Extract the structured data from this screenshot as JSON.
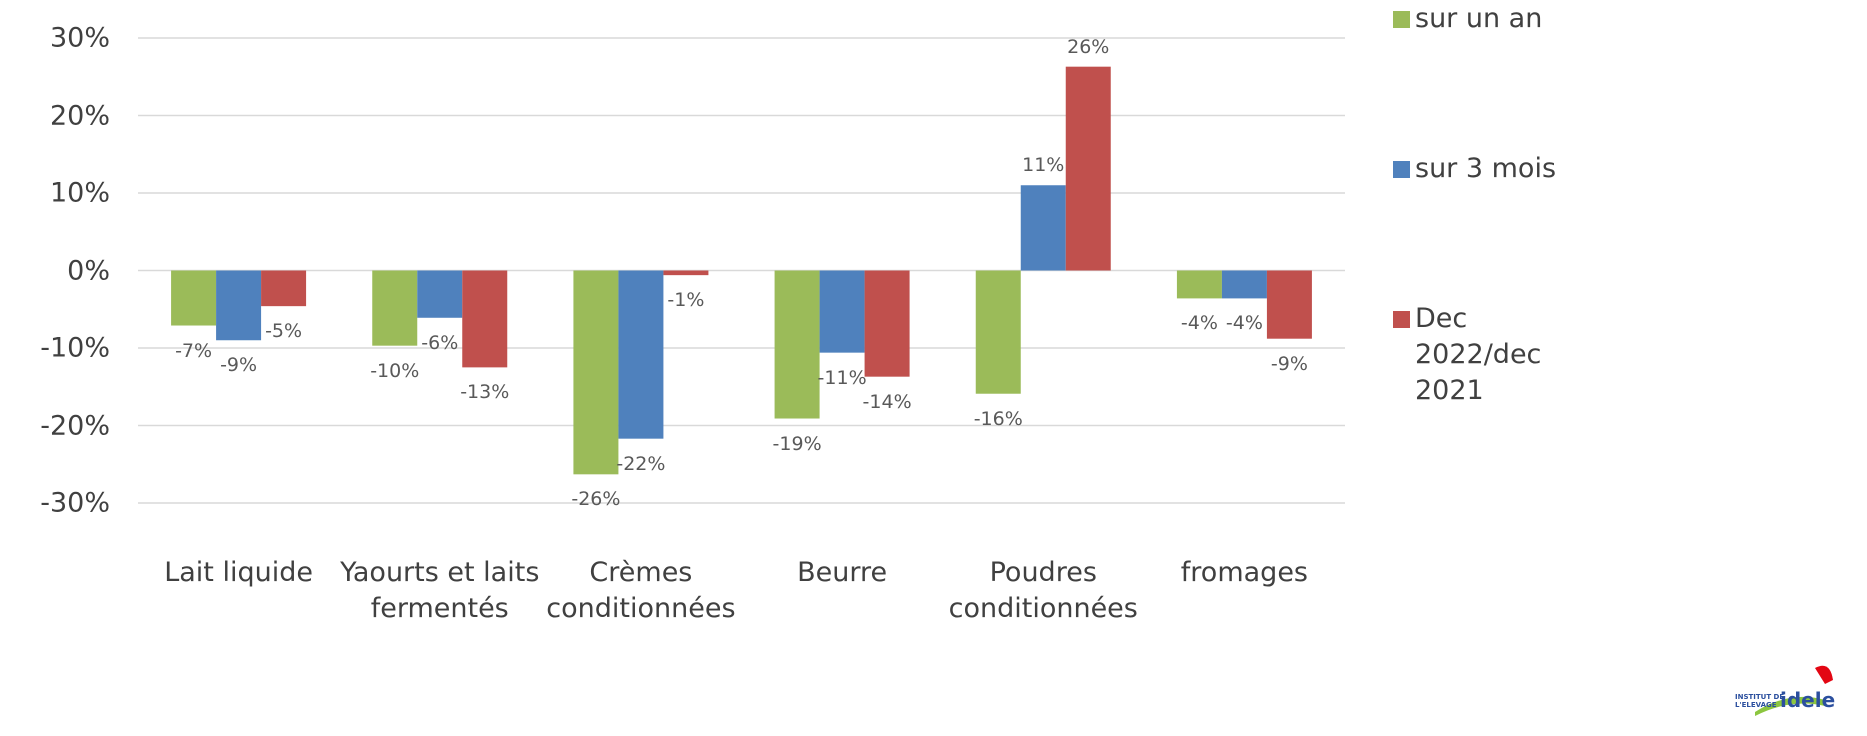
{
  "chart_data": {
    "type": "bar",
    "categories": [
      "Lait liquide",
      "Yaourts et laits fermentés",
      "Crèmes conditionnées",
      "Beurre",
      "Poudres conditionnées",
      "fromages"
    ],
    "series": [
      {
        "name": "sur un an",
        "color": "#9bbb59",
        "values": [
          -7.1,
          -9.7,
          -26.3,
          -19.1,
          -15.9,
          -3.6
        ],
        "value_labels": [
          "-7%",
          "-10%",
          "-26%",
          "-19%",
          "-16%",
          "-4%"
        ]
      },
      {
        "name": "sur 3 mois",
        "color": "#4f81bd",
        "values": [
          -9.0,
          -6.1,
          -21.7,
          -10.6,
          11.0,
          -3.6
        ],
        "value_labels": [
          "-9%",
          "-6%",
          "-22%",
          "-11%",
          "11%",
          "-4%"
        ]
      },
      {
        "name": "Dec 2022/dec 2021",
        "color": "#c0504d",
        "values": [
          -4.6,
          -12.5,
          -0.6,
          -13.7,
          26.3,
          -8.8
        ],
        "value_labels": [
          "-5%",
          "-13%",
          "-1%",
          "-14%",
          "26%",
          "-9%"
        ]
      }
    ],
    "ylim": [
      -30,
      30
    ],
    "yticks": [
      {
        "value": -30,
        "label": "-30%"
      },
      {
        "value": -20,
        "label": "-20%"
      },
      {
        "value": -10,
        "label": "-10%"
      },
      {
        "value": 0,
        "label": "0%"
      },
      {
        "value": 10,
        "label": "10%"
      },
      {
        "value": 20,
        "label": "20%"
      },
      {
        "value": 30,
        "label": "30%"
      }
    ],
    "grid": true,
    "legend": "right"
  },
  "logo": {
    "line1": "INSTITUT DE",
    "line2": "L'ELEVAGE",
    "brand": "idele"
  }
}
